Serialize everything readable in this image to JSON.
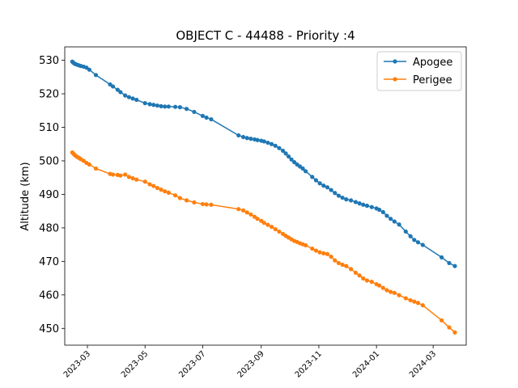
{
  "chart_data": {
    "type": "line",
    "title": "OBJECT C - 44488 - Priority :4",
    "xlabel": "",
    "ylabel": "Altitude (km)",
    "ylim": [
      445,
      534
    ],
    "xlim": [
      "2023-02-05",
      "2024-04-05"
    ],
    "yticks": [
      450,
      460,
      470,
      480,
      490,
      500,
      510,
      520,
      530
    ],
    "xticks": [
      "2023-03",
      "2023-05",
      "2023-07",
      "2023-09",
      "2023-11",
      "2024-01",
      "2024-03"
    ],
    "legend": "top-right",
    "grid": false,
    "series": [
      {
        "name": "Apogee",
        "color": "#1f77b4",
        "points": [
          [
            "2023-02-13",
            529.6
          ],
          [
            "2023-02-14",
            529.3
          ],
          [
            "2023-02-15",
            529.1
          ],
          [
            "2023-02-16",
            528.9
          ],
          [
            "2023-02-18",
            528.7
          ],
          [
            "2023-02-20",
            528.5
          ],
          [
            "2023-02-22",
            528.3
          ],
          [
            "2023-02-25",
            528.1
          ],
          [
            "2023-02-28",
            527.8
          ],
          [
            "2023-03-03",
            527.2
          ],
          [
            "2023-03-10",
            525.6
          ],
          [
            "2023-03-25",
            522.8
          ],
          [
            "2023-03-28",
            522.2
          ],
          [
            "2023-04-02",
            521.2
          ],
          [
            "2023-04-05",
            520.5
          ],
          [
            "2023-04-10",
            519.5
          ],
          [
            "2023-04-14",
            519.0
          ],
          [
            "2023-04-18",
            518.6
          ],
          [
            "2023-04-22",
            518.2
          ],
          [
            "2023-05-01",
            517.2
          ],
          [
            "2023-05-06",
            516.9
          ],
          [
            "2023-05-10",
            516.7
          ],
          [
            "2023-05-14",
            516.5
          ],
          [
            "2023-05-18",
            516.3
          ],
          [
            "2023-05-22",
            516.2
          ],
          [
            "2023-05-26",
            516.2
          ],
          [
            "2023-06-02",
            516.1
          ],
          [
            "2023-06-07",
            516.0
          ],
          [
            "2023-06-14",
            515.5
          ],
          [
            "2023-06-22",
            514.6
          ],
          [
            "2023-07-01",
            513.4
          ],
          [
            "2023-07-05",
            512.9
          ],
          [
            "2023-07-10",
            512.4
          ],
          [
            "2023-08-08",
            507.6
          ],
          [
            "2023-08-13",
            507.1
          ],
          [
            "2023-08-17",
            506.8
          ],
          [
            "2023-08-21",
            506.6
          ],
          [
            "2023-08-25",
            506.4
          ],
          [
            "2023-08-28",
            506.2
          ],
          [
            "2023-09-01",
            506.0
          ],
          [
            "2023-09-04",
            505.8
          ],
          [
            "2023-09-08",
            505.4
          ],
          [
            "2023-09-12",
            505.0
          ],
          [
            "2023-09-16",
            504.5
          ],
          [
            "2023-09-20",
            503.8
          ],
          [
            "2023-09-24",
            503.0
          ],
          [
            "2023-09-27",
            502.2
          ],
          [
            "2023-09-30",
            501.3
          ],
          [
            "2023-10-03",
            500.4
          ],
          [
            "2023-10-06",
            499.6
          ],
          [
            "2023-10-09",
            498.9
          ],
          [
            "2023-10-12",
            498.3
          ],
          [
            "2023-10-15",
            497.7
          ],
          [
            "2023-10-18",
            496.9
          ],
          [
            "2023-10-25",
            495.2
          ],
          [
            "2023-10-29",
            494.2
          ],
          [
            "2023-11-02",
            493.3
          ],
          [
            "2023-11-06",
            492.6
          ],
          [
            "2023-11-10",
            492.1
          ],
          [
            "2023-11-14",
            491.3
          ],
          [
            "2023-11-18",
            490.4
          ],
          [
            "2023-11-22",
            489.6
          ],
          [
            "2023-11-26",
            489.0
          ],
          [
            "2023-11-30",
            488.5
          ],
          [
            "2023-12-05",
            488.2
          ],
          [
            "2023-12-10",
            487.7
          ],
          [
            "2023-12-14",
            487.3
          ],
          [
            "2023-12-18",
            486.9
          ],
          [
            "2023-12-22",
            486.6
          ],
          [
            "2023-12-27",
            486.2
          ],
          [
            "2024-01-01",
            485.8
          ],
          [
            "2024-01-04",
            485.4
          ],
          [
            "2024-01-08",
            484.7
          ],
          [
            "2024-01-12",
            483.6
          ],
          [
            "2024-01-16",
            482.7
          ],
          [
            "2024-01-20",
            481.9
          ],
          [
            "2024-01-25",
            481.0
          ],
          [
            "2024-02-01",
            478.9
          ],
          [
            "2024-02-06",
            477.5
          ],
          [
            "2024-02-10",
            476.4
          ],
          [
            "2024-02-14",
            475.7
          ],
          [
            "2024-02-19",
            474.9
          ],
          [
            "2024-03-10",
            471.2
          ],
          [
            "2024-03-18",
            469.5
          ],
          [
            "2024-03-24",
            468.6
          ]
        ]
      },
      {
        "name": "Perigee",
        "color": "#ff7f0e",
        "points": [
          [
            "2023-02-13",
            502.5
          ],
          [
            "2023-02-14",
            502.2
          ],
          [
            "2023-02-15",
            501.9
          ],
          [
            "2023-02-16",
            501.6
          ],
          [
            "2023-02-18",
            501.2
          ],
          [
            "2023-02-20",
            500.9
          ],
          [
            "2023-02-22",
            500.5
          ],
          [
            "2023-02-25",
            500.0
          ],
          [
            "2023-02-28",
            499.4
          ],
          [
            "2023-03-03",
            498.9
          ],
          [
            "2023-03-10",
            497.7
          ],
          [
            "2023-03-25",
            496.1
          ],
          [
            "2023-03-28",
            495.9
          ],
          [
            "2023-04-02",
            495.8
          ],
          [
            "2023-04-05",
            495.6
          ],
          [
            "2023-04-10",
            495.9
          ],
          [
            "2023-04-14",
            495.2
          ],
          [
            "2023-04-18",
            494.8
          ],
          [
            "2023-04-22",
            494.4
          ],
          [
            "2023-05-01",
            493.8
          ],
          [
            "2023-05-06",
            493.0
          ],
          [
            "2023-05-10",
            492.5
          ],
          [
            "2023-05-14",
            491.9
          ],
          [
            "2023-05-18",
            491.4
          ],
          [
            "2023-05-22",
            490.9
          ],
          [
            "2023-05-26",
            490.5
          ],
          [
            "2023-06-02",
            489.7
          ],
          [
            "2023-06-07",
            488.9
          ],
          [
            "2023-06-14",
            488.2
          ],
          [
            "2023-06-22",
            487.6
          ],
          [
            "2023-07-01",
            487.1
          ],
          [
            "2023-07-05",
            487.0
          ],
          [
            "2023-07-10",
            486.9
          ],
          [
            "2023-08-08",
            485.6
          ],
          [
            "2023-08-13",
            485.2
          ],
          [
            "2023-08-17",
            484.6
          ],
          [
            "2023-08-21",
            484.0
          ],
          [
            "2023-08-25",
            483.3
          ],
          [
            "2023-08-28",
            482.7
          ],
          [
            "2023-09-01",
            482.1
          ],
          [
            "2023-09-04",
            481.5
          ],
          [
            "2023-09-08",
            480.9
          ],
          [
            "2023-09-12",
            480.3
          ],
          [
            "2023-09-16",
            479.6
          ],
          [
            "2023-09-20",
            478.9
          ],
          [
            "2023-09-24",
            478.2
          ],
          [
            "2023-09-27",
            477.6
          ],
          [
            "2023-09-30",
            477.1
          ],
          [
            "2023-10-03",
            476.6
          ],
          [
            "2023-10-06",
            476.1
          ],
          [
            "2023-10-09",
            475.8
          ],
          [
            "2023-10-12",
            475.4
          ],
          [
            "2023-10-15",
            475.1
          ],
          [
            "2023-10-18",
            474.8
          ],
          [
            "2023-10-25",
            473.8
          ],
          [
            "2023-10-29",
            473.2
          ],
          [
            "2023-11-02",
            472.7
          ],
          [
            "2023-11-06",
            472.4
          ],
          [
            "2023-11-10",
            472.2
          ],
          [
            "2023-11-14",
            471.4
          ],
          [
            "2023-11-18",
            470.3
          ],
          [
            "2023-11-22",
            469.5
          ],
          [
            "2023-11-26",
            469.0
          ],
          [
            "2023-11-30",
            468.6
          ],
          [
            "2023-12-05",
            467.7
          ],
          [
            "2023-12-10",
            466.6
          ],
          [
            "2023-12-14",
            465.8
          ],
          [
            "2023-12-18",
            464.9
          ],
          [
            "2023-12-22",
            464.3
          ],
          [
            "2023-12-27",
            463.9
          ],
          [
            "2024-01-01",
            463.2
          ],
          [
            "2024-01-04",
            462.8
          ],
          [
            "2024-01-08",
            462.1
          ],
          [
            "2024-01-12",
            461.4
          ],
          [
            "2024-01-16",
            460.9
          ],
          [
            "2024-01-20",
            460.6
          ],
          [
            "2024-01-25",
            459.9
          ],
          [
            "2024-02-01",
            459.0
          ],
          [
            "2024-02-06",
            458.4
          ],
          [
            "2024-02-10",
            458.0
          ],
          [
            "2024-02-14",
            457.6
          ],
          [
            "2024-02-19",
            456.9
          ],
          [
            "2024-03-10",
            452.4
          ],
          [
            "2024-03-18",
            450.3
          ],
          [
            "2024-03-24",
            448.8
          ]
        ]
      }
    ]
  }
}
